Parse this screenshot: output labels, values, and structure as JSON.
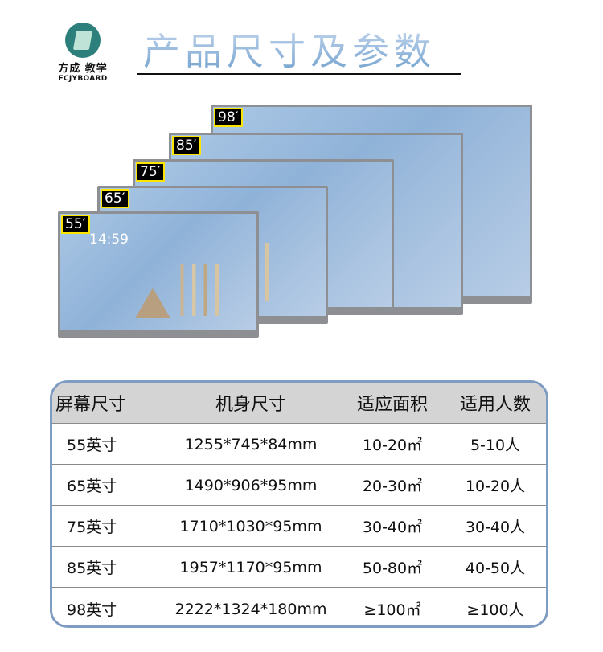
{
  "logo": {
    "name_cn": "方成 教学",
    "name_en": "FCJYBOARD"
  },
  "title": "产品尺寸及参数",
  "screens": [
    {
      "label": "98′"
    },
    {
      "label": "85′"
    },
    {
      "label": "75′"
    },
    {
      "label": "65′"
    },
    {
      "label": "55′",
      "clock": "14:59"
    }
  ],
  "table": {
    "headers": [
      "屏幕尺寸",
      "机身尺寸",
      "适应面积",
      "适用人数"
    ],
    "rows": [
      [
        "55英寸",
        "1255*745*84mm",
        "10-20㎡",
        "5-10人"
      ],
      [
        "65英寸",
        "1490*906*95mm",
        "20-30㎡",
        "10-20人"
      ],
      [
        "75英寸",
        "1710*1030*95mm",
        "30-40㎡",
        "30-40人"
      ],
      [
        "85英寸",
        "1957*1170*95mm",
        "50-80㎡",
        "40-50人"
      ],
      [
        "98英寸",
        "2222*1324*180mm",
        "≥100㎡",
        "≥100人"
      ]
    ]
  },
  "colors": {
    "table_border": "#7f9cc2",
    "header_bg": "#d4d4d4",
    "label_border": "#ffe600"
  }
}
